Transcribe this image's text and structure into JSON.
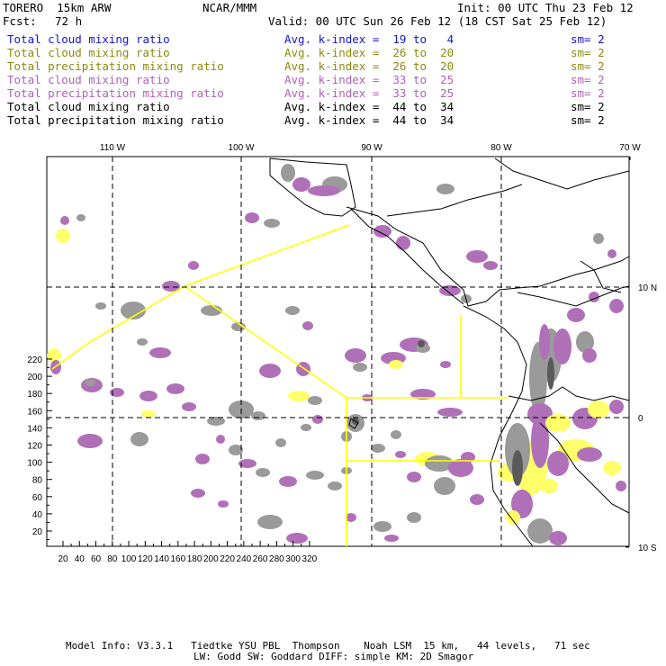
{
  "header": {
    "model": "TORERO  15km ARW",
    "org": "NCAR/MMM",
    "init": "Init: 00 UTC Thu 23 Feb 12",
    "fcst_label": "Fcst:",
    "fcst_value": "72 h",
    "valid": "Valid: 00 UTC Sun 26 Feb 12 (18 CST Sat 25 Feb 12)"
  },
  "legend": [
    {
      "field": "Total cloud mixing ratio",
      "kindex": "Avg. k-index =  19 to   4",
      "sm": "sm= 2",
      "color": "#1414d2"
    },
    {
      "field": "Total cloud mixing ratio",
      "kindex": "Avg. k-index =  26 to  20",
      "sm": "sm= 2",
      "color": "#8a8a10"
    },
    {
      "field": "Total precipitation mixing ratio",
      "kindex": "Avg. k-index =  26 to  20",
      "sm": "sm= 2",
      "color": "#8a8a10"
    },
    {
      "field": "Total cloud mixing ratio",
      "kindex": "Avg. k-index =  33 to  25",
      "sm": "sm= 2",
      "color": "#b060b8"
    },
    {
      "field": "Total precipitation mixing ratio",
      "kindex": "Avg. k-index =  33 to  25",
      "sm": "sm= 2",
      "color": "#b060b8"
    },
    {
      "field": "Total cloud mixing ratio",
      "kindex": "Avg. k-index =  44 to  34",
      "sm": "sm= 2",
      "color": "#000000"
    },
    {
      "field": "Total precipitation mixing ratio",
      "kindex": "Avg. k-index =  44 to  34",
      "sm": "sm= 2",
      "color": "#000000"
    }
  ],
  "axes": {
    "top_lon_labels": [
      "110 W",
      "100 W",
      "90 W",
      "80 W",
      "70 W"
    ],
    "right_lat_labels": [
      "10 N",
      "0",
      "10 S"
    ],
    "y_ticks": [
      "220",
      "200",
      "180",
      "160",
      "140",
      "120",
      "100",
      "80",
      "60",
      "40",
      "20"
    ],
    "x_ticks": [
      "20",
      "40",
      "60",
      "80",
      "100",
      "120",
      "140",
      "160",
      "180",
      "200",
      "220",
      "240",
      "260",
      "280",
      "300",
      "320"
    ]
  },
  "footer": {
    "line1": "Model Info: V3.3.1   Tiedtke YSU PBL  Thompson    Noah LSM  15 km,   44 levels,   71 sec",
    "line2": "LW: Godd SW: Goddard DIFF: simple KM: 2D Smagor"
  },
  "colors": {
    "cloud_gray": "#9a9a9a",
    "cloud_dark": "#5a5a5a",
    "low_k_yellow": "#ffff6a",
    "mid_k_purple": "#b070b8",
    "domain_outline": "#ffff00",
    "coast": "#000000"
  }
}
